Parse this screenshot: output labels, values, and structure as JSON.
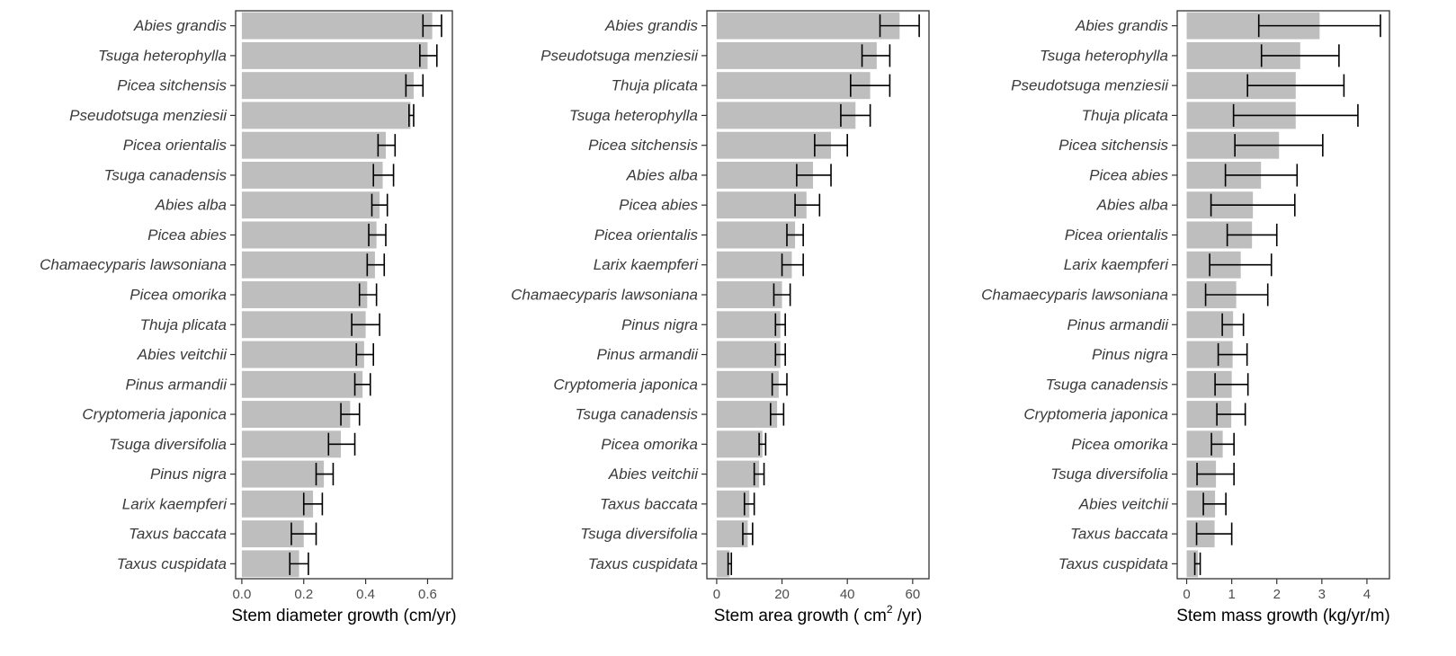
{
  "chart_data": [
    {
      "type": "bar",
      "orientation": "horizontal",
      "xlabel": "Stem diameter growth (cm/yr)",
      "xlim": [
        -0.02,
        0.68
      ],
      "xticks": [
        0.0,
        0.2,
        0.4,
        0.6
      ],
      "xtick_labels": [
        "0.0",
        "0.2",
        "0.4",
        "0.6"
      ],
      "categories": [
        "Abies grandis",
        "Tsuga heterophylla",
        "Picea sitchensis",
        "Pseudotsuga menziesii",
        "Picea orientalis",
        "Tsuga canadensis",
        "Abies alba",
        "Picea abies",
        "Chamaecyparis lawsoniana",
        "Picea omorika",
        "Thuja plicata",
        "Abies veitchii",
        "Pinus armandii",
        "Cryptomeria japonica",
        "Tsuga diversifolia",
        "Pinus nigra",
        "Larix kaempferi",
        "Taxus baccata",
        "Taxus cuspidata"
      ],
      "values": [
        0.615,
        0.6,
        0.555,
        0.545,
        0.465,
        0.455,
        0.445,
        0.435,
        0.43,
        0.405,
        0.4,
        0.395,
        0.39,
        0.35,
        0.32,
        0.265,
        0.23,
        0.2,
        0.185
      ],
      "error_low": [
        0.585,
        0.575,
        0.53,
        0.54,
        0.44,
        0.425,
        0.42,
        0.41,
        0.405,
        0.38,
        0.355,
        0.37,
        0.365,
        0.32,
        0.28,
        0.24,
        0.2,
        0.16,
        0.155
      ],
      "error_high": [
        0.645,
        0.63,
        0.585,
        0.555,
        0.495,
        0.49,
        0.47,
        0.465,
        0.46,
        0.435,
        0.445,
        0.425,
        0.415,
        0.38,
        0.365,
        0.295,
        0.26,
        0.24,
        0.215
      ],
      "grid": false,
      "bar_color": "#bebebe",
      "error_bar_color": "#000000"
    },
    {
      "type": "bar",
      "orientation": "horizontal",
      "xlabel_parts": [
        "Stem area growth ( cm",
        "2",
        " /yr)"
      ],
      "xlim": [
        -3,
        65
      ],
      "xticks": [
        0,
        20,
        40,
        60
      ],
      "xtick_labels": [
        "0",
        "20",
        "40",
        "60"
      ],
      "categories": [
        "Abies grandis",
        "Pseudotsuga menziesii",
        "Thuja plicata",
        "Tsuga heterophylla",
        "Picea sitchensis",
        "Abies alba",
        "Picea abies",
        "Picea orientalis",
        "Larix kaempferi",
        "Chamaecyparis lawsoniana",
        "Pinus nigra",
        "Pinus armandii",
        "Cryptomeria japonica",
        "Tsuga canadensis",
        "Picea omorika",
        "Abies veitchii",
        "Taxus baccata",
        "Tsuga diversifolia",
        "Taxus cuspidata"
      ],
      "values": [
        56,
        49,
        47,
        42.5,
        35,
        29.5,
        27.5,
        24,
        23,
        20,
        19.5,
        19.5,
        19,
        18.5,
        14,
        13,
        10,
        9.5,
        4
      ],
      "error_low": [
        50,
        44.5,
        41,
        38,
        30,
        24.5,
        24,
        21.5,
        20,
        17.5,
        18,
        18,
        17,
        16.5,
        13,
        11.5,
        8.5,
        8,
        3.5
      ],
      "error_high": [
        62,
        53,
        53,
        47,
        40,
        35,
        31.5,
        26.5,
        26.5,
        22.5,
        21,
        21,
        21.5,
        20.5,
        15,
        14.5,
        11.5,
        11,
        4.5
      ],
      "grid": false,
      "bar_color": "#bebebe",
      "error_bar_color": "#000000"
    },
    {
      "type": "bar",
      "orientation": "horizontal",
      "xlabel": "Stem mass growth (kg/yr/m)",
      "xlim": [
        -0.21,
        4.5
      ],
      "xticks": [
        0,
        1,
        2,
        3,
        4
      ],
      "xtick_labels": [
        "0",
        "1",
        "2",
        "3",
        "4"
      ],
      "categories": [
        "Abies grandis",
        "Tsuga heterophylla",
        "Pseudotsuga menziesii",
        "Thuja plicata",
        "Picea sitchensis",
        "Picea abies",
        "Abies alba",
        "Picea orientalis",
        "Larix kaempferi",
        "Chamaecyparis lawsoniana",
        "Pinus armandii",
        "Pinus nigra",
        "Tsuga canadensis",
        "Cryptomeria japonica",
        "Picea omorika",
        "Tsuga diversifolia",
        "Abies veitchii",
        "Taxus baccata",
        "Taxus cuspidata"
      ],
      "values": [
        2.95,
        2.52,
        2.42,
        2.42,
        2.05,
        1.65,
        1.47,
        1.45,
        1.2,
        1.1,
        1.03,
        1.02,
        1.0,
        0.99,
        0.8,
        0.65,
        0.63,
        0.62,
        0.25
      ],
      "error_low": [
        1.6,
        1.66,
        1.35,
        1.04,
        1.07,
        0.86,
        0.54,
        0.9,
        0.51,
        0.42,
        0.79,
        0.7,
        0.63,
        0.67,
        0.55,
        0.23,
        0.37,
        0.22,
        0.18
      ],
      "error_high": [
        4.3,
        3.38,
        3.49,
        3.8,
        3.02,
        2.45,
        2.4,
        2.0,
        1.88,
        1.8,
        1.26,
        1.34,
        1.36,
        1.3,
        1.05,
        1.05,
        0.87,
        1.0,
        0.3
      ],
      "grid": false,
      "bar_color": "#bebebe",
      "error_bar_color": "#000000"
    }
  ]
}
